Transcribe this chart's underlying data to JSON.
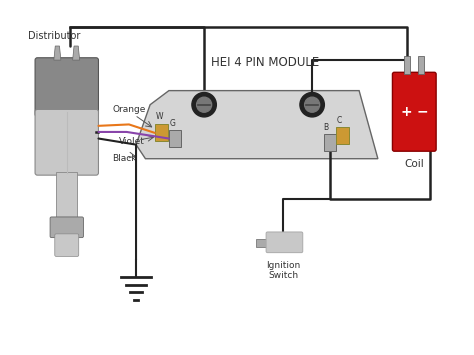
{
  "title": "HEI 4 PIN MODULE",
  "background_color": "#ffffff",
  "fig_width": 4.74,
  "fig_height": 3.55,
  "dpi": 100,
  "distributor_label": "Distributor",
  "coil_label": "Coil",
  "ignition_label": "Ignition\nSwitch",
  "wire_orange": "#e8771a",
  "wire_violet": "#8844aa",
  "wire_black": "#222222",
  "gray_dark": "#888888",
  "gray_body": "#999999",
  "gray_light": "#c8c8c8",
  "gray_mid": "#aaaaaa",
  "red_coil": "#cc1111",
  "module_fill": "#d5d5d5",
  "module_edge": "#666666"
}
